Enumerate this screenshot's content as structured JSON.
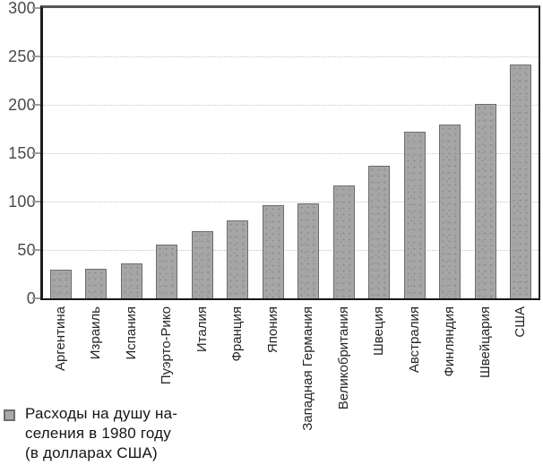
{
  "chart_data": {
    "type": "bar",
    "title": "",
    "xlabel": "",
    "ylabel": "",
    "categories": [
      "Аргентина",
      "Израиль",
      "Испания",
      "Пуэрто-Рико",
      "Италия",
      "Франция",
      "Япония",
      "Западная Германия",
      "Великобритания",
      "Швеция",
      "Австралия",
      "Финляндия",
      "Швейцария",
      "США"
    ],
    "values": [
      30,
      31,
      36,
      56,
      69,
      81,
      96,
      98,
      117,
      137,
      172,
      180,
      201,
      242
    ],
    "ylim": [
      0,
      300
    ],
    "yticks": [
      0,
      50,
      100,
      150,
      200,
      250,
      300
    ],
    "grid": true,
    "gridlines_at": [
      50,
      100,
      150,
      200,
      250
    ],
    "legend_position": "bottom-left",
    "bar_color": "#a6a6a6",
    "bar_border_color": "#6d6d6d"
  },
  "legend": {
    "text": "Расходы на душу на-\nселения в 1980 году\n(в долларах США)"
  }
}
